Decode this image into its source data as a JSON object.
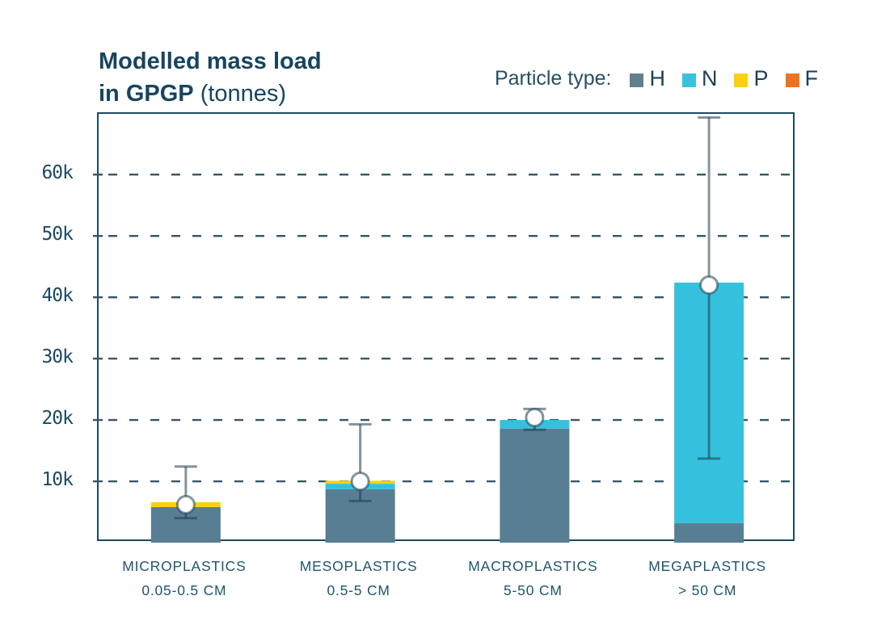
{
  "title": {
    "line1": "Modelled mass load",
    "line2_bold": "in GPGP",
    "line2_normal": " (tonnes)"
  },
  "legend": {
    "label": "Particle type:",
    "items": [
      {
        "code": "H",
        "color": "#64808f"
      },
      {
        "code": "N",
        "color": "#38c2de"
      },
      {
        "code": "P",
        "color": "#fbd00e"
      },
      {
        "code": "F",
        "color": "#ea7423"
      }
    ]
  },
  "chart_data": {
    "type": "bar",
    "subtype": "stacked-with-error-bars",
    "title": "Modelled mass load in GPGP (tonnes)",
    "xlabel": "",
    "ylabel": "tonnes",
    "unit_scale": "thousands of tonnes",
    "grid": "dashed-horizontal",
    "legend_position": "top-right",
    "categories": [
      {
        "name": "MICROPLASTICS",
        "size": "0.05-0.5 CM"
      },
      {
        "name": "MESOPLASTICS",
        "size": "0.5-5 CM"
      },
      {
        "name": "MACROPLASTICS",
        "size": "5-50 CM"
      },
      {
        "name": "MEGAPLASTICS",
        "size": "> 50 CM"
      }
    ],
    "series": [
      {
        "name": "H",
        "color": "#587e94",
        "values": [
          5.8,
          8.7,
          18.6,
          3.2
        ]
      },
      {
        "name": "N",
        "color": "#35c1dd",
        "values": [
          0,
          0.9,
          1.4,
          39.2
        ]
      },
      {
        "name": "P",
        "color": "#fbd00e",
        "values": [
          0.8,
          0.5,
          0,
          0
        ]
      },
      {
        "name": "F",
        "color": "#ea7423",
        "values": [
          0,
          0,
          0,
          0
        ]
      }
    ],
    "totals": [
      6.6,
      10.1,
      20.0,
      42.4
    ],
    "error_bars": {
      "point": [
        6.2,
        10.0,
        20.4,
        42.0
      ],
      "low": [
        4.0,
        6.8,
        18.4,
        13.7
      ],
      "high": [
        12.4,
        19.3,
        21.8,
        69.3
      ]
    },
    "yaxis": {
      "ylim": [
        0,
        69.9
      ],
      "ticks": [
        {
          "value": 10,
          "label": "10k"
        },
        {
          "value": 20,
          "label": "20k"
        },
        {
          "value": 30,
          "label": "30k"
        },
        {
          "value": 40,
          "label": "40k"
        },
        {
          "value": 50,
          "label": "50k"
        },
        {
          "value": 60,
          "label": "60k"
        }
      ]
    },
    "colors": {
      "axis_border": "#1d4a63",
      "gridline": "#35566a",
      "error_bar": "rgba(30,60,78,0.55)",
      "marker_fill": "#ffffff",
      "text_navy": "#17455f"
    }
  }
}
